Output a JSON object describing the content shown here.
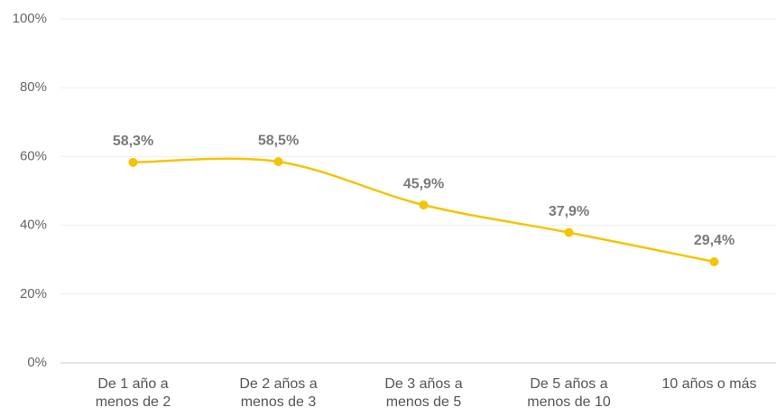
{
  "chart_data": {
    "type": "line",
    "categories": [
      "De 1 año a\nmenos de 2",
      "De 2 años a\nmenos de 3",
      "De 3 años a\nmenos de 5",
      "De 5 años a\nmenos de 10",
      "10 años o más"
    ],
    "values": [
      58.3,
      58.5,
      45.9,
      37.9,
      29.4
    ],
    "value_labels": [
      "58,3%",
      "58,5%",
      "45,9%",
      "37,9%",
      "29,4%"
    ],
    "color": "#f5c400",
    "ylim": [
      0,
      100
    ],
    "yticks": [
      {
        "value": 0,
        "label": "0%"
      },
      {
        "value": 20,
        "label": "20%"
      },
      {
        "value": 40,
        "label": "40%"
      },
      {
        "value": 60,
        "label": "60%"
      },
      {
        "value": 80,
        "label": "80%"
      },
      {
        "value": 100,
        "label": "100%"
      }
    ],
    "grid": true
  }
}
